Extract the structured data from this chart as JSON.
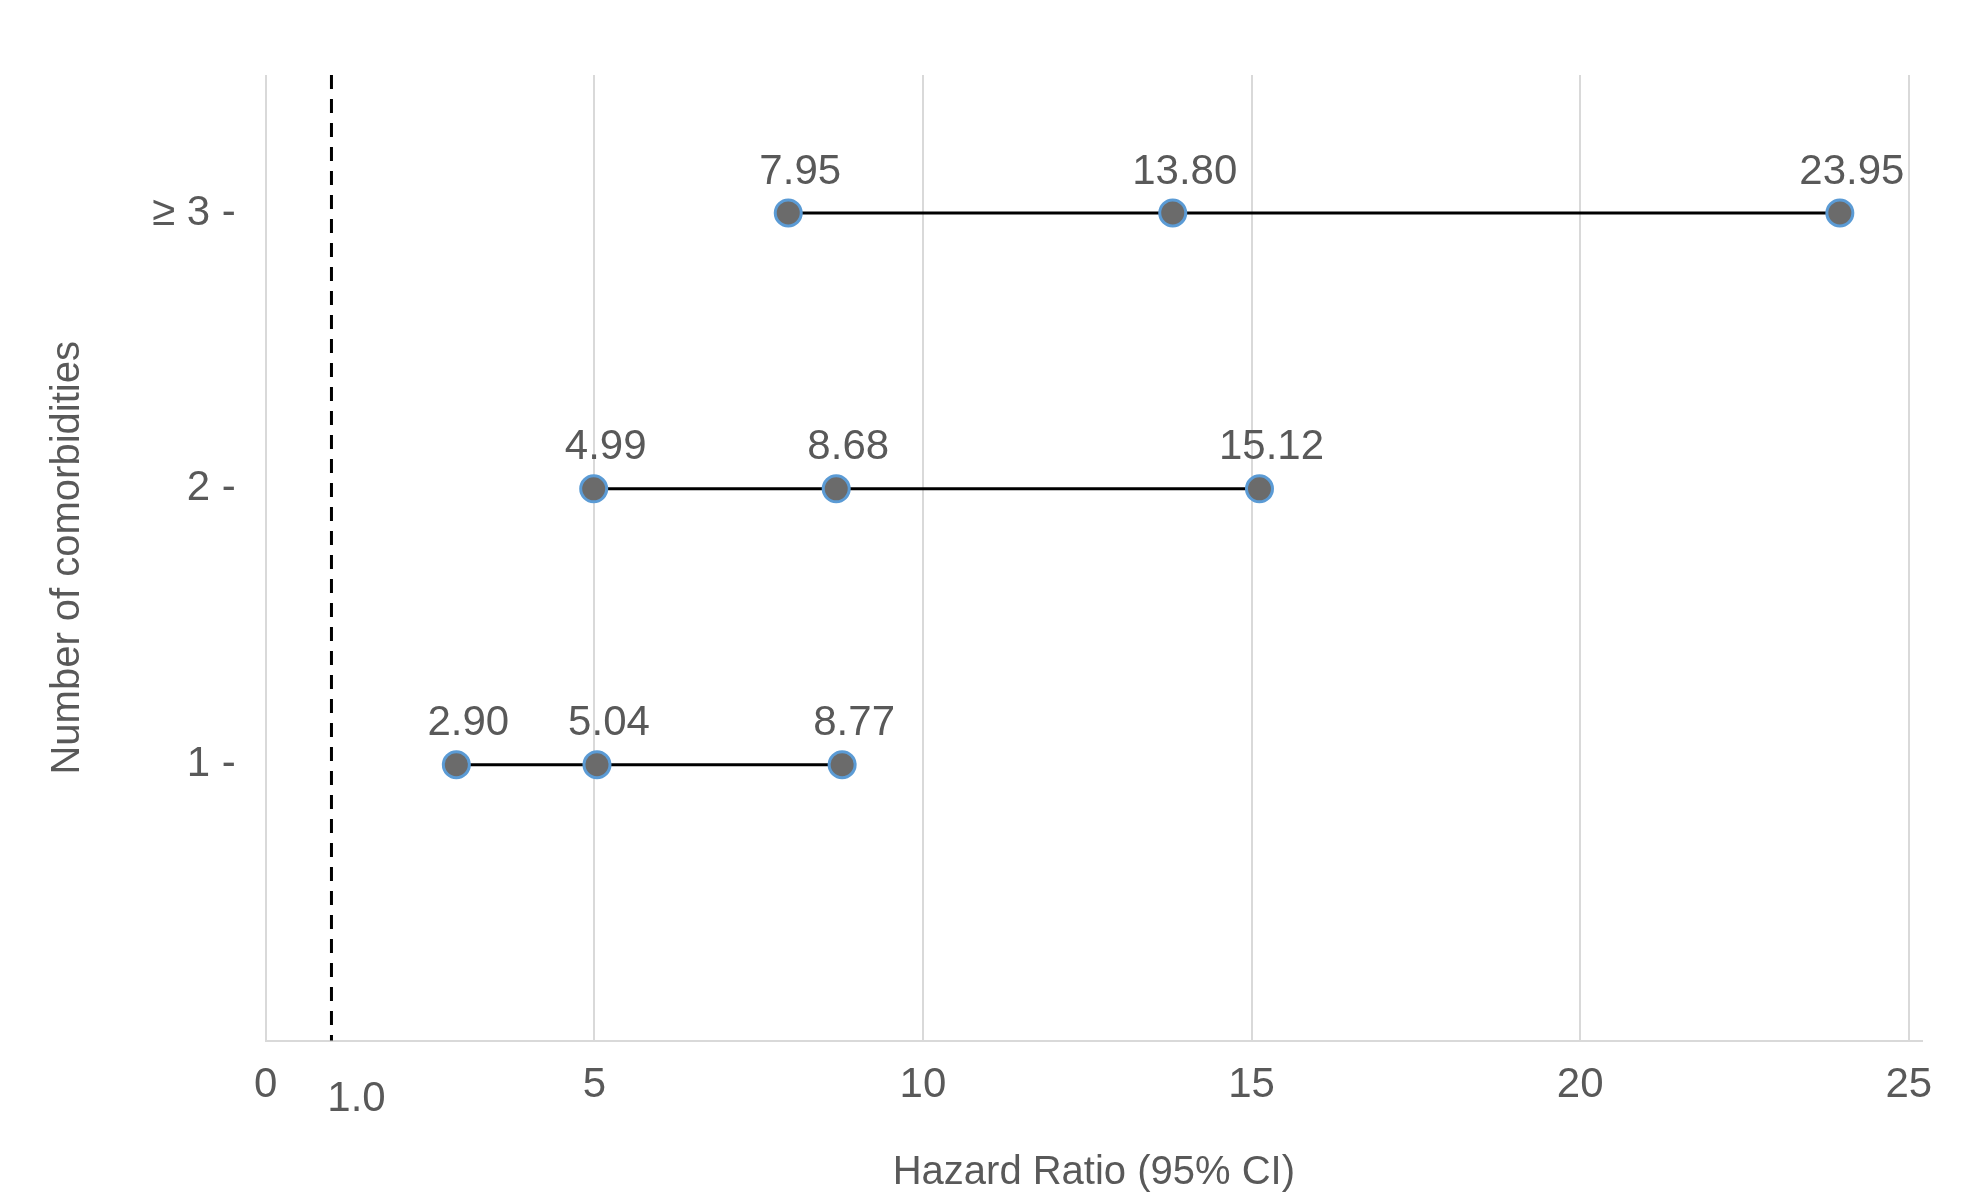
{
  "chart_data": {
    "type": "line",
    "xlabel": "Hazard Ratio (95% CI)",
    "ylabel": "Number of comorbidities",
    "xlim": [
      0,
      25.2
    ],
    "xticks": [
      0,
      5,
      10,
      15,
      20,
      25
    ],
    "ylim": [
      0,
      3.5
    ],
    "yticks": [
      {
        "value": 1,
        "label": "1 -"
      },
      {
        "value": 2,
        "label": "2 -"
      },
      {
        "value": 3,
        "label": "≥ 3 -"
      }
    ],
    "series": [
      {
        "color": "#000000",
        "x": [
          2.9,
          5.04,
          8.77
        ],
        "values": [
          1,
          1,
          1
        ]
      },
      {
        "color": "#000000",
        "x": [
          4.99,
          8.68,
          15.12
        ],
        "values": [
          2,
          2,
          2
        ]
      },
      {
        "color": "#000000",
        "x": [
          7.95,
          13.8,
          23.95
        ],
        "values": [
          3,
          3,
          3
        ]
      }
    ],
    "annotations": [
      {
        "text": "2.90",
        "x": 2.9,
        "y": 1
      },
      {
        "text": "5.04",
        "x": 5.04,
        "y": 1
      },
      {
        "text": "8.77",
        "x": 8.77,
        "y": 1
      },
      {
        "text": "4.99",
        "x": 4.99,
        "y": 2
      },
      {
        "text": "8.68",
        "x": 8.68,
        "y": 2
      },
      {
        "text": "15.12",
        "x": 15.12,
        "y": 2
      },
      {
        "text": "7.95",
        "x": 7.95,
        "y": 3
      },
      {
        "text": "13.80",
        "x": 13.8,
        "y": 3
      },
      {
        "text": "23.95",
        "x": 23.95,
        "y": 3
      }
    ],
    "ref_lines": [
      {
        "axis": "x",
        "value": 1.0,
        "label": "1.0",
        "color": "#000000",
        "line_style": "dashed"
      }
    ],
    "grid": "x",
    "marker": "circle",
    "legend": false
  }
}
